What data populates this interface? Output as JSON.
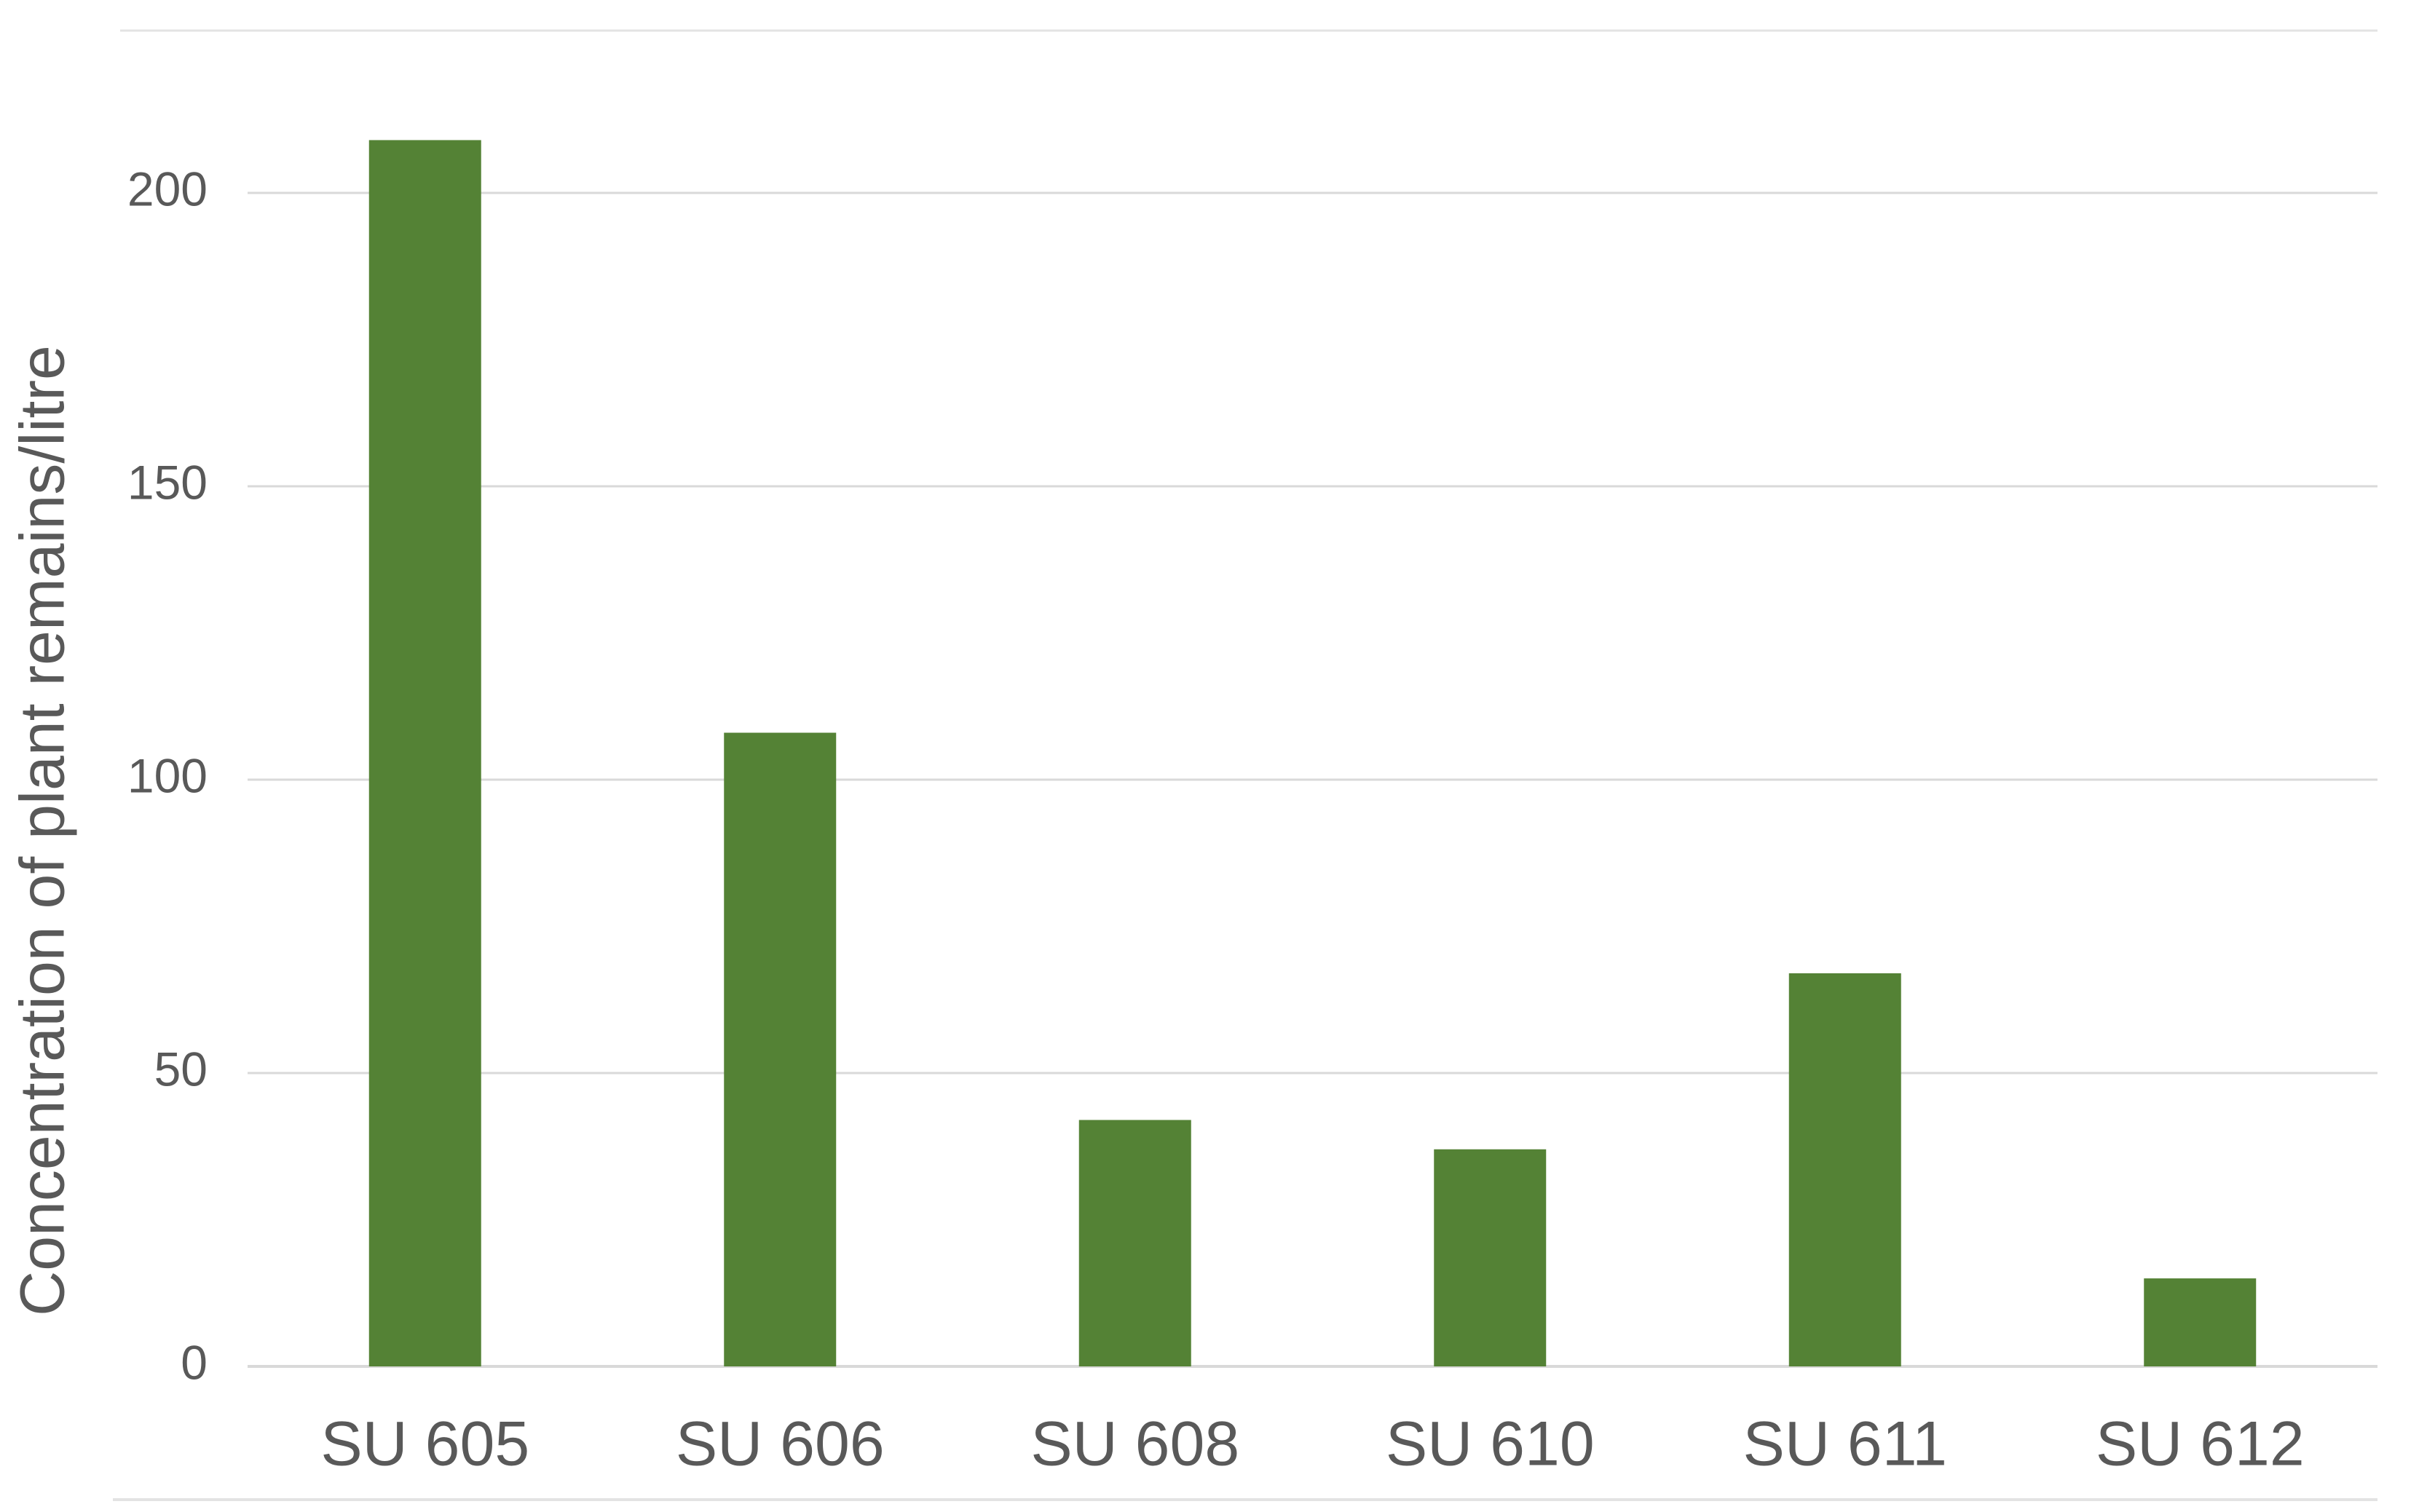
{
  "chart_data": {
    "type": "bar",
    "title": "",
    "xlabel": "",
    "ylabel": "Concentration of plant remains/litre",
    "categories": [
      "SU 605",
      "SU 606",
      "SU 608",
      "SU 610",
      "SU 611",
      "SU 612"
    ],
    "values": [
      209,
      108,
      42,
      37,
      67,
      15
    ],
    "ylim": [
      0,
      200
    ],
    "yticks": [
      0,
      50,
      100,
      150,
      200
    ],
    "grid": true,
    "legend": "none",
    "colors": {
      "bar": "#548235",
      "grid": "#d9d9d9",
      "text": "#595959"
    }
  }
}
